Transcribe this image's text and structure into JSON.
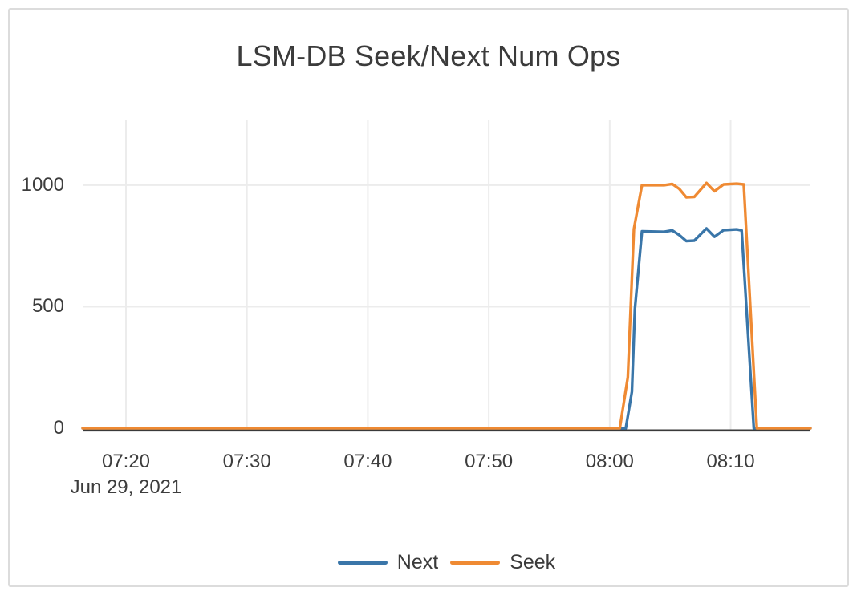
{
  "chart_data": {
    "type": "line",
    "title": "LSM-DB Seek/Next Num Ops",
    "x_axis": {
      "kind": "time",
      "domain": [
        "07:16:25",
        "08:16:36"
      ],
      "ticks": [
        {
          "label": "07:20",
          "time": "07:20:00"
        },
        {
          "label": "07:30",
          "time": "07:30:00"
        },
        {
          "label": "07:40",
          "time": "07:40:00"
        },
        {
          "label": "07:50",
          "time": "07:50:00"
        },
        {
          "label": "08:00",
          "time": "08:00:00"
        },
        {
          "label": "08:10",
          "time": "08:10:00"
        }
      ],
      "date_label": "Jun 29, 2021",
      "date_label_under_tick": "07:20"
    },
    "y_axis": {
      "range": [
        0,
        1267
      ],
      "ticks": [
        {
          "label": "0",
          "value": 0
        },
        {
          "label": "500",
          "value": 500
        },
        {
          "label": "1000",
          "value": 1000
        }
      ],
      "grid": true
    },
    "legend": {
      "position": "bottom-center",
      "entries": [
        {
          "label": "Next",
          "color": "#3a76a9"
        },
        {
          "label": "Seek",
          "color": "#ef8a33"
        }
      ]
    },
    "series": [
      {
        "name": "Next",
        "color": "#3a76a9",
        "points": [
          [
            "07:16:25",
            0
          ],
          [
            "08:01:20",
            0
          ],
          [
            "08:01:50",
            150
          ],
          [
            "08:02:05",
            490
          ],
          [
            "08:02:40",
            810
          ],
          [
            "08:04:30",
            808
          ],
          [
            "08:05:10",
            814
          ],
          [
            "08:05:45",
            795
          ],
          [
            "08:06:20",
            770
          ],
          [
            "08:07:00",
            772
          ],
          [
            "08:08:00",
            822
          ],
          [
            "08:08:40",
            788
          ],
          [
            "08:09:25",
            815
          ],
          [
            "08:10:30",
            818
          ],
          [
            "08:10:55",
            814
          ],
          [
            "08:11:55",
            0
          ],
          [
            "08:16:36",
            0
          ]
        ]
      },
      {
        "name": "Seek",
        "color": "#ef8a33",
        "points": [
          [
            "07:16:25",
            0
          ],
          [
            "08:00:50",
            0
          ],
          [
            "08:01:30",
            210
          ],
          [
            "08:02:00",
            820
          ],
          [
            "08:02:40",
            1000
          ],
          [
            "08:04:30",
            1000
          ],
          [
            "08:05:10",
            1005
          ],
          [
            "08:05:45",
            985
          ],
          [
            "08:06:20",
            950
          ],
          [
            "08:07:00",
            952
          ],
          [
            "08:08:00",
            1009
          ],
          [
            "08:08:40",
            975
          ],
          [
            "08:09:25",
            1003
          ],
          [
            "08:10:30",
            1006
          ],
          [
            "08:11:05",
            1003
          ],
          [
            "08:12:10",
            0
          ],
          [
            "08:16:36",
            0
          ]
        ]
      }
    ],
    "style": {
      "background": "#ffffff",
      "card_border_color": "#dcdcdc",
      "grid_color": "#ececec",
      "zero_axis_color": "#3a3a3a",
      "title_color": "#3b3b3b",
      "tick_text_color": "#3d3d3d"
    }
  }
}
